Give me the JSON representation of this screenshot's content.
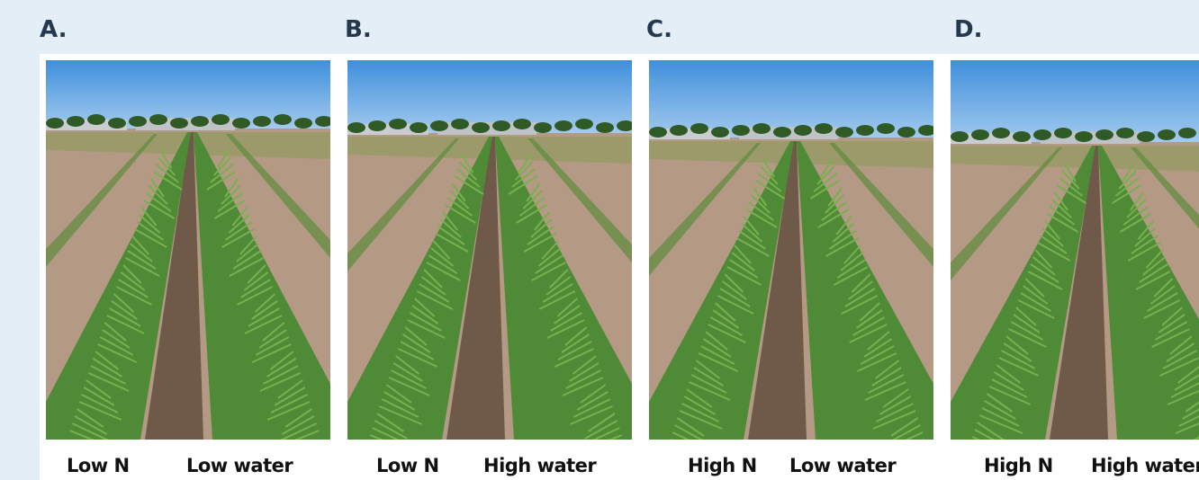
{
  "panels": [
    {
      "letter": "A.",
      "labels": [
        "Low N",
        "Low water"
      ]
    },
    {
      "letter": "B.",
      "labels": [
        "Low N",
        "High water"
      ]
    },
    {
      "letter": "C.",
      "labels": [
        "High N",
        "Low water"
      ]
    },
    {
      "letter": "D.",
      "labels": [
        "High N",
        "High water"
      ]
    }
  ]
}
